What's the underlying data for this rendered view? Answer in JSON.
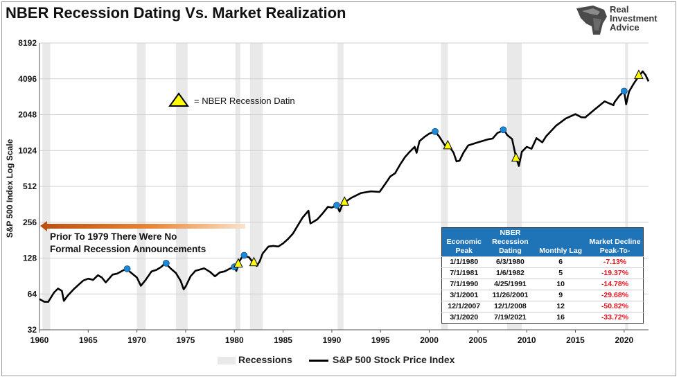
{
  "chart_data": {
    "type": "line",
    "title": "NBER Recession Dating Vs. Market Realization",
    "ylabel": "S&P 500 Index Log Scale",
    "xlabel": "",
    "y_scale": "log2",
    "ylim": [
      32,
      8192
    ],
    "xlim": [
      1960,
      2022.5
    ],
    "x_ticks": [
      1960,
      1965,
      1970,
      1975,
      1980,
      1985,
      1990,
      1995,
      2000,
      2005,
      2010,
      2015,
      2020
    ],
    "x_tick_labels": [
      "1960",
      "1965",
      "1970",
      "1975",
      "1980",
      "1985",
      "1990",
      "1995",
      "2000",
      "2005",
      "2010",
      "2015",
      "2020"
    ],
    "y_ticks": [
      32,
      64,
      128,
      256,
      512,
      1024,
      2048,
      4096,
      8192
    ],
    "y_tick_labels": [
      "32",
      "64",
      "128",
      "256",
      "512",
      "1024",
      "2048",
      "4096",
      "8192"
    ],
    "grid": "horizontal",
    "legend_position": "bottom",
    "legend": [
      {
        "name": "Recessions",
        "color": "#e9e9e9"
      },
      {
        "name": "S&P 500 Stock Price Index",
        "color": "#000000"
      }
    ],
    "recessions": [
      [
        1960.3,
        1961.1
      ],
      [
        1970.0,
        1970.9
      ],
      [
        1974.0,
        1975.2
      ],
      [
        1980.1,
        1980.6
      ],
      [
        1981.6,
        1982.9
      ],
      [
        1990.6,
        1991.2
      ],
      [
        2001.2,
        2001.9
      ],
      [
        2008.0,
        2009.5
      ],
      [
        2020.1,
        2020.4
      ]
    ],
    "series": [
      {
        "name": "S&P 500 Stock Price Index",
        "color": "#000000",
        "x": [
          1960.0,
          1960.5,
          1960.9,
          1961.5,
          1961.9,
          1962.3,
          1962.5,
          1962.9,
          1963.5,
          1963.9,
          1964.5,
          1965.0,
          1965.5,
          1966.0,
          1966.4,
          1966.8,
          1967.5,
          1968.0,
          1968.5,
          1968.9,
          1969.5,
          1970.0,
          1970.4,
          1970.9,
          1971.5,
          1972.0,
          1972.5,
          1972.9,
          1973.5,
          1974.0,
          1974.5,
          1974.8,
          1975.0,
          1975.5,
          1976.0,
          1976.9,
          1977.5,
          1978.0,
          1978.5,
          1979.0,
          1979.5,
          1980.0,
          1980.2,
          1980.5,
          1980.9,
          1981.5,
          1982.0,
          1982.3,
          1982.6,
          1982.9,
          1983.5,
          1984.0,
          1984.5,
          1985.0,
          1985.5,
          1986.0,
          1986.5,
          1987.0,
          1987.6,
          1987.8,
          1988.0,
          1988.5,
          1989.0,
          1989.6,
          1990.0,
          1990.5,
          1990.8,
          1991.2,
          1991.5,
          1992.0,
          1993.0,
          1994.0,
          1994.9,
          1995.5,
          1996.0,
          1996.5,
          1997.0,
          1997.5,
          1998.0,
          1998.5,
          1998.7,
          1999.0,
          1999.5,
          2000.0,
          2000.6,
          2001.0,
          2001.7,
          2002.0,
          2002.5,
          2002.8,
          2003.1,
          2003.5,
          2004.0,
          2005.0,
          2006.0,
          2006.5,
          2007.0,
          2007.7,
          2008.0,
          2008.5,
          2008.9,
          2009.2,
          2009.5,
          2010.0,
          2010.5,
          2011.0,
          2011.6,
          2012.0,
          2013.0,
          2014.0,
          2015.0,
          2015.6,
          2016.0,
          2016.5,
          2017.0,
          2018.0,
          2018.9,
          2019.0,
          2019.5,
          2020.0,
          2020.2,
          2020.5,
          2021.0,
          2021.5,
          2021.9,
          2022.2,
          2022.5
        ],
        "y": [
          58,
          55,
          55,
          66,
          71,
          68,
          56,
          62,
          70,
          75,
          83,
          86,
          84,
          92,
          88,
          80,
          93,
          95,
          100,
          104,
          95,
          88,
          75,
          84,
          99,
          102,
          108,
          116,
          104,
          96,
          82,
          70,
          74,
          90,
          100,
          105,
          98,
          90,
          97,
          99,
          104,
          108,
          100,
          120,
          135,
          130,
          115,
          110,
          120,
          140,
          160,
          162,
          160,
          170,
          185,
          205,
          240,
          280,
          320,
          250,
          255,
          270,
          300,
          345,
          340,
          355,
          315,
          380,
          385,
          410,
          450,
          465,
          460,
          540,
          620,
          660,
          780,
          900,
          1000,
          1100,
          980,
          1230,
          1330,
          1420,
          1480,
          1350,
          1100,
          1130,
          980,
          830,
          840,
          980,
          1130,
          1200,
          1270,
          1290,
          1440,
          1520,
          1380,
          1280,
          900,
          760,
          1000,
          1100,
          1060,
          1300,
          1200,
          1350,
          1650,
          1900,
          2070,
          1950,
          1940,
          2100,
          2270,
          2650,
          2460,
          2600,
          2950,
          3230,
          2500,
          3200,
          3750,
          4300,
          4730,
          4400,
          3900
        ]
      }
    ],
    "economic_peaks": [
      {
        "x": 1969.0,
        "y": 104
      },
      {
        "x": 1973.0,
        "y": 116
      },
      {
        "x": 1980.0,
        "y": 108
      },
      {
        "x": 1981.0,
        "y": 135
      },
      {
        "x": 1990.5,
        "y": 355
      },
      {
        "x": 2000.6,
        "y": 1480
      },
      {
        "x": 2007.6,
        "y": 1530
      },
      {
        "x": 2020.0,
        "y": 3230
      }
    ],
    "nber_announcements": [
      {
        "x": 1980.4,
        "y": 115
      },
      {
        "x": 1982.0,
        "y": 118
      },
      {
        "x": 1991.3,
        "y": 380
      },
      {
        "x": 2001.9,
        "y": 1130
      },
      {
        "x": 2008.9,
        "y": 890
      },
      {
        "x": 2021.5,
        "y": 4400
      }
    ],
    "annotations": {
      "marker_legend": "= NBER Recession Datin",
      "arrow_note_line1": "Prior To 1979 There Were No",
      "arrow_note_line2": "Formal Recession Announcements"
    },
    "table": {
      "headers": [
        "Economic Peak",
        "NBER Recession Dating",
        "Monthly Lag",
        "Market Decline Peak-To-"
      ],
      "rows": [
        [
          "1/1/1980",
          "6/3/1980",
          "6",
          "-7.13%"
        ],
        [
          "7/1/1981",
          "1/6/1982",
          "5",
          "-19.37%"
        ],
        [
          "7/1/1990",
          "4/25/1991",
          "10",
          "-14.78%"
        ],
        [
          "3/1/2001",
          "11/26/2001",
          "9",
          "-29.68%"
        ],
        [
          "12/1/2007",
          "12/1/2008",
          "12",
          "-50.82%"
        ],
        [
          "3/1/2020",
          "7/19/2021",
          "16",
          "-33.72%"
        ]
      ]
    }
  },
  "brand": {
    "line1": "Real",
    "line2": "Investment",
    "line3": "Advice"
  },
  "colors": {
    "peak_marker": "#1e88d4",
    "announcement_marker": "#ffff00",
    "arrow": "#d86a1a",
    "table_header": "#1f73b7",
    "negative": "#e4121b"
  }
}
